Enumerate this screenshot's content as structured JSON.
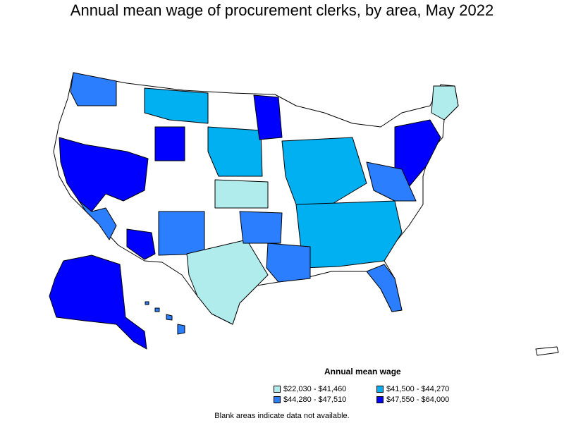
{
  "title": "Annual mean wage of procurement clerks, by area, May 2022",
  "legend": {
    "title": "Annual mean wage",
    "items": [
      {
        "label": "$22,030 - $41,460",
        "color": "#b0ecec"
      },
      {
        "label": "$41,500 - $44,270",
        "color": "#00b0f0"
      },
      {
        "label": "$44,280 - $47,510",
        "color": "#2b7fff"
      },
      {
        "label": "$47,550 - $64,000",
        "color": "#0000ff"
      }
    ]
  },
  "footnote": "Blank areas indicate data not available."
}
